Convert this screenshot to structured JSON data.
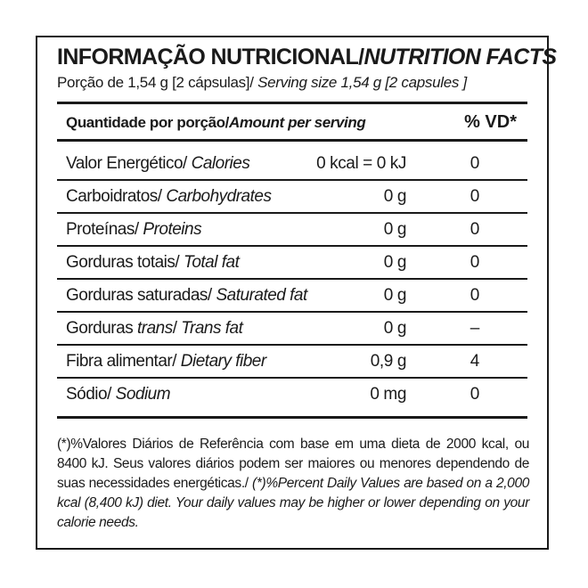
{
  "title": {
    "pt": "INFORMAÇÃO NUTRICIONAL/",
    "en": "NUTRITION FACTS"
  },
  "serving": {
    "pt": "Porção de 1,54 g  [2 cápsulas]/ ",
    "en": "Serving size 1,54 g [2 capsules ]"
  },
  "header": {
    "pt": "Quantidade por porção/",
    "en": "Amount per serving",
    "vd": "% VD*"
  },
  "rows": [
    {
      "pt": "Valor Energético/ ",
      "en": "Calories",
      "amount": "0 kcal = 0 kJ",
      "vd": "0"
    },
    {
      "pt": "Carboidratos/ ",
      "en": "Carbohydrates",
      "amount": "0 g",
      "vd": "0"
    },
    {
      "pt": "Proteínas/ ",
      "en": "Proteins",
      "amount": "0 g",
      "vd": "0"
    },
    {
      "pt": "Gorduras totais/ ",
      "en": "Total fat",
      "amount": "0 g",
      "vd": "0"
    },
    {
      "pt": "Gorduras saturadas/ ",
      "en": "Saturated fat",
      "amount": "0 g",
      "vd": "0"
    },
    {
      "pt": "Gorduras ",
      "pt_italic": "trans",
      "pt_after": "/ ",
      "en": "Trans fat",
      "amount": "0 g",
      "vd": "–"
    },
    {
      "pt": "Fibra alimentar/ ",
      "en": "Dietary fiber",
      "amount": "0,9 g",
      "vd": "4"
    },
    {
      "pt": "Sódio/ ",
      "en": "Sodium",
      "amount": "0 mg",
      "vd": "0"
    }
  ],
  "footnote": {
    "pt": "(*)%Valores Diários de Referência com base em uma dieta de 2000 kcal, ou 8400 kJ. Seus valores diários podem ser maiores ou menores dependendo de suas necessidades energéticas./ ",
    "en": "(*)%Percent Daily Values are based on a 2,000 kcal (8,400 kJ) diet. Your daily values may be higher or lower depending on your calorie needs."
  }
}
